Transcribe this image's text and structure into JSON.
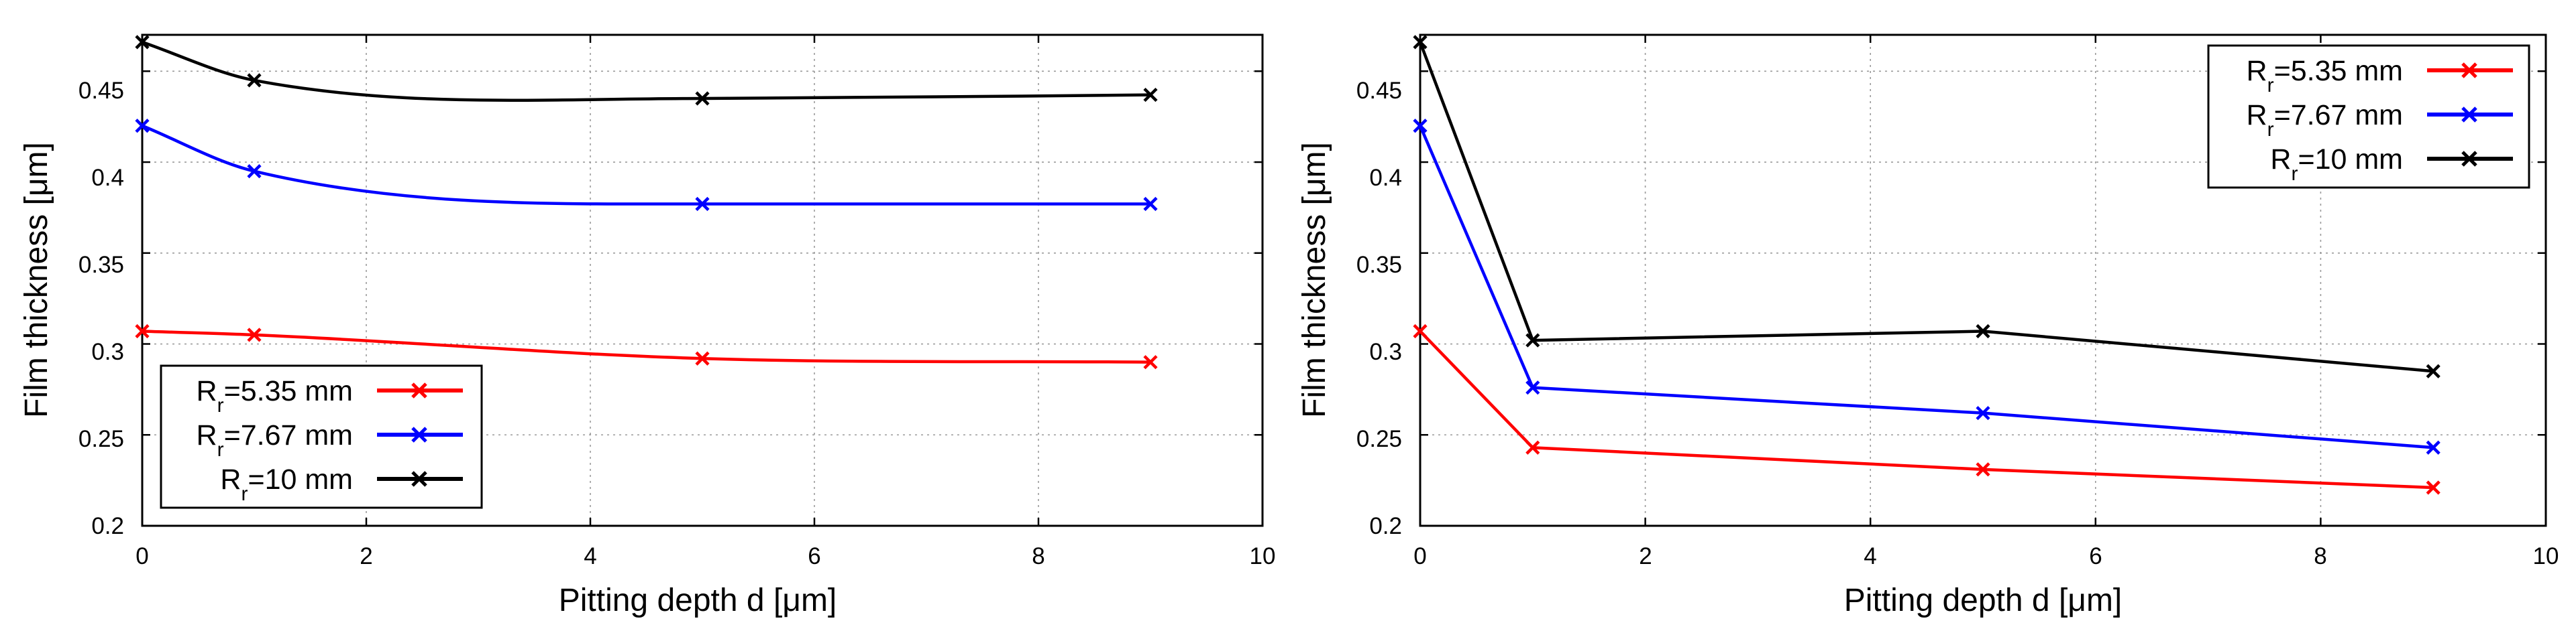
{
  "chart_data": [
    {
      "type": "line",
      "curve": "smooth",
      "title": "",
      "xlabel": "Pitting depth d [μm]",
      "ylabel": "Film thickness [μm]",
      "xlim": [
        0,
        10
      ],
      "ylim": [
        0.2,
        0.47
      ],
      "xticks": [
        0,
        2,
        4,
        6,
        8,
        10
      ],
      "yticks": [
        0.2,
        0.25,
        0.3,
        0.35,
        0.4,
        0.45
      ],
      "xtick_labels": [
        "0",
        "2",
        "4",
        "6",
        "8",
        "10"
      ],
      "ytick_labels": [
        "0.2",
        "0.25",
        "0.3",
        "0.35",
        "0.4",
        "0.45"
      ],
      "grid": true,
      "legend_position": "bottom-left",
      "x": [
        0,
        1,
        5,
        9
      ],
      "series": [
        {
          "label_main": "R",
          "label_sub": "r",
          "label_rest": "=5.35 mm",
          "color": "#ff0000",
          "values": [
            0.307,
            0.305,
            0.292,
            0.29
          ]
        },
        {
          "label_main": "R",
          "label_sub": "r",
          "label_rest": "=7.67 mm",
          "color": "#0000ff",
          "values": [
            0.42,
            0.395,
            0.377,
            0.377
          ]
        },
        {
          "label_main": "R",
          "label_sub": "r",
          "label_rest": "=10 mm",
          "color": "#000000",
          "values": [
            0.466,
            0.445,
            0.435,
            0.437
          ]
        }
      ]
    },
    {
      "type": "line",
      "curve": "linear",
      "title": "",
      "xlabel": "Pitting depth d [μm]",
      "ylabel": "Film thickness [μm]",
      "xlim": [
        0,
        10
      ],
      "ylim": [
        0.2,
        0.47
      ],
      "xticks": [
        0,
        2,
        4,
        6,
        8,
        10
      ],
      "yticks": [
        0.2,
        0.25,
        0.3,
        0.35,
        0.4,
        0.45
      ],
      "xtick_labels": [
        "0",
        "2",
        "4",
        "6",
        "8",
        "10"
      ],
      "ytick_labels": [
        "0.2",
        "0.25",
        "0.3",
        "0.35",
        "0.4",
        "0.45"
      ],
      "grid": true,
      "legend_position": "top-right",
      "x": [
        0,
        1,
        5,
        9
      ],
      "series": [
        {
          "label_main": "R",
          "label_sub": "r",
          "label_rest": "=5.35 mm",
          "color": "#ff0000",
          "values": [
            0.307,
            0.243,
            0.231,
            0.221
          ]
        },
        {
          "label_main": "R",
          "label_sub": "r",
          "label_rest": "=7.67 mm",
          "color": "#0000ff",
          "values": [
            0.42,
            0.276,
            0.262,
            0.243
          ]
        },
        {
          "label_main": "R",
          "label_sub": "r",
          "label_rest": "=10 mm",
          "color": "#000000",
          "values": [
            0.466,
            0.302,
            0.307,
            0.285
          ]
        }
      ]
    }
  ]
}
